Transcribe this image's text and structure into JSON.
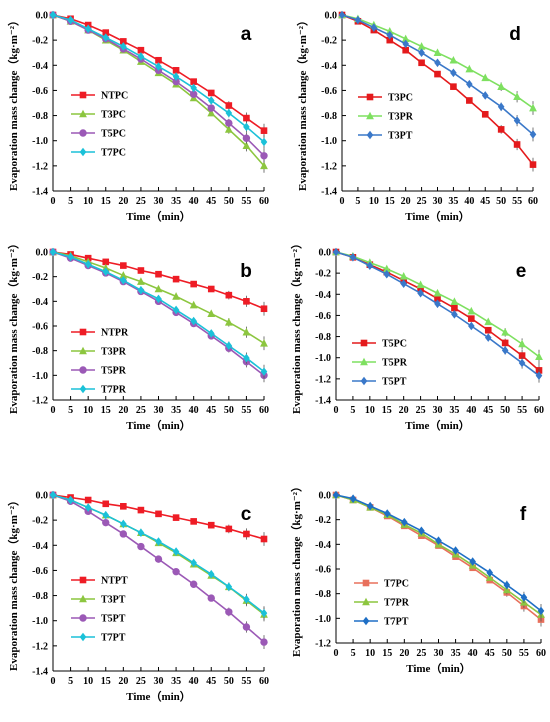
{
  "figure": {
    "x_label": "Time（min）",
    "y_label": "Evaporation mass change（kg·m⁻²）"
  },
  "chart_data": [
    {
      "panel_letter": "a",
      "type": "line",
      "x": [
        0,
        5,
        10,
        15,
        20,
        25,
        30,
        35,
        40,
        45,
        50,
        55,
        60
      ],
      "x_ticks": [
        0,
        5,
        10,
        15,
        20,
        25,
        30,
        35,
        40,
        45,
        50,
        55,
        60
      ],
      "xlim": [
        0,
        60
      ],
      "ylim": [
        -1.4,
        0.0
      ],
      "y_ticks": [
        "0.0",
        "-0.2",
        "-0.4",
        "-0.6",
        "-0.8",
        "-1.0",
        "-1.2",
        "-1.4"
      ],
      "legend_position": "center-left",
      "series": [
        {
          "name": "NTPC",
          "color": "#ee1c25",
          "marker": "square",
          "values": [
            0,
            -0.03,
            -0.08,
            -0.14,
            -0.21,
            -0.28,
            -0.36,
            -0.44,
            -0.53,
            -0.62,
            -0.72,
            -0.82,
            -0.92
          ]
        },
        {
          "name": "T3PC",
          "color": "#8cc63f",
          "marker": "triangle",
          "values": [
            0,
            -0.05,
            -0.12,
            -0.2,
            -0.28,
            -0.37,
            -0.46,
            -0.55,
            -0.66,
            -0.78,
            -0.91,
            -1.04,
            -1.2
          ]
        },
        {
          "name": "T5PC",
          "color": "#9b59b6",
          "marker": "circle",
          "values": [
            0,
            -0.05,
            -0.12,
            -0.19,
            -0.27,
            -0.35,
            -0.44,
            -0.53,
            -0.63,
            -0.74,
            -0.86,
            -0.98,
            -1.12
          ]
        },
        {
          "name": "T7PC",
          "color": "#1bc1d8",
          "marker": "diamond",
          "values": [
            0,
            -0.04,
            -0.11,
            -0.18,
            -0.25,
            -0.33,
            -0.41,
            -0.49,
            -0.58,
            -0.68,
            -0.78,
            -0.89,
            -1.01
          ]
        }
      ]
    },
    {
      "panel_letter": "b",
      "type": "line",
      "x": [
        0,
        5,
        10,
        15,
        20,
        25,
        30,
        35,
        40,
        45,
        50,
        55,
        60
      ],
      "x_ticks": [
        0,
        5,
        10,
        15,
        20,
        25,
        30,
        35,
        40,
        45,
        50,
        55,
        60
      ],
      "xlim": [
        0,
        60
      ],
      "ylim": [
        -1.2,
        0.0
      ],
      "y_ticks": [
        "0.0",
        "-0.2",
        "-0.4",
        "-0.6",
        "-0.8",
        "-1.0",
        "-1.2"
      ],
      "legend_position": "center-left",
      "series": [
        {
          "name": "NTPR",
          "color": "#ee1c25",
          "marker": "square",
          "values": [
            0,
            -0.02,
            -0.05,
            -0.08,
            -0.11,
            -0.15,
            -0.18,
            -0.22,
            -0.26,
            -0.3,
            -0.35,
            -0.4,
            -0.46
          ]
        },
        {
          "name": "T3PR",
          "color": "#8cc63f",
          "marker": "triangle",
          "values": [
            0,
            -0.03,
            -0.08,
            -0.13,
            -0.19,
            -0.24,
            -0.3,
            -0.36,
            -0.43,
            -0.5,
            -0.57,
            -0.65,
            -0.74
          ]
        },
        {
          "name": "T5PR",
          "color": "#9b59b6",
          "marker": "circle",
          "values": [
            0,
            -0.05,
            -0.11,
            -0.17,
            -0.24,
            -0.32,
            -0.4,
            -0.49,
            -0.58,
            -0.68,
            -0.78,
            -0.89,
            -1.0
          ]
        },
        {
          "name": "T7PR",
          "color": "#1bc1d8",
          "marker": "diamond",
          "values": [
            0,
            -0.04,
            -0.1,
            -0.16,
            -0.23,
            -0.31,
            -0.38,
            -0.47,
            -0.56,
            -0.66,
            -0.76,
            -0.86,
            -0.97
          ]
        }
      ]
    },
    {
      "panel_letter": "c",
      "type": "line",
      "x": [
        0,
        5,
        10,
        15,
        20,
        25,
        30,
        35,
        40,
        45,
        50,
        55,
        60
      ],
      "x_ticks": [
        0,
        5,
        10,
        15,
        20,
        25,
        30,
        35,
        40,
        45,
        50,
        55,
        60
      ],
      "xlim": [
        0,
        60
      ],
      "ylim": [
        -1.4,
        0.0
      ],
      "y_ticks": [
        "0.0",
        "-0.2",
        "-0.4",
        "-0.6",
        "-0.8",
        "-1.0",
        "-1.2",
        "-1.4"
      ],
      "legend_position": "center-left",
      "series": [
        {
          "name": "NTPT",
          "color": "#ee1c25",
          "marker": "square",
          "values": [
            0,
            -0.02,
            -0.04,
            -0.07,
            -0.09,
            -0.12,
            -0.15,
            -0.18,
            -0.21,
            -0.24,
            -0.27,
            -0.31,
            -0.35
          ]
        },
        {
          "name": "T3PT",
          "color": "#8cc63f",
          "marker": "triangle",
          "values": [
            0,
            -0.04,
            -0.1,
            -0.16,
            -0.23,
            -0.3,
            -0.38,
            -0.46,
            -0.55,
            -0.64,
            -0.73,
            -0.84,
            -0.95
          ]
        },
        {
          "name": "T5PT",
          "color": "#9b59b6",
          "marker": "circle",
          "values": [
            0,
            -0.05,
            -0.13,
            -0.22,
            -0.31,
            -0.41,
            -0.51,
            -0.61,
            -0.71,
            -0.82,
            -0.93,
            -1.05,
            -1.17
          ]
        },
        {
          "name": "T7PT",
          "color": "#1bc1d8",
          "marker": "diamond",
          "values": [
            0,
            -0.04,
            -0.1,
            -0.16,
            -0.23,
            -0.3,
            -0.37,
            -0.45,
            -0.54,
            -0.63,
            -0.73,
            -0.83,
            -0.94
          ]
        }
      ]
    },
    {
      "panel_letter": "d",
      "type": "line",
      "x": [
        0,
        5,
        10,
        15,
        20,
        25,
        30,
        35,
        40,
        45,
        50,
        55,
        60
      ],
      "x_ticks": [
        0,
        5,
        10,
        15,
        20,
        25,
        30,
        35,
        40,
        45,
        50,
        55,
        60
      ],
      "xlim": [
        0,
        60
      ],
      "ylim": [
        -1.4,
        0.0
      ],
      "y_ticks": [
        "0.0",
        "-0.2",
        "-0.4",
        "-0.6",
        "-0.8",
        "-1.0",
        "-1.2",
        "-1.4"
      ],
      "legend_position": "center-left",
      "series": [
        {
          "name": "T3PC",
          "color": "#e41a1c",
          "marker": "square",
          "values": [
            0,
            -0.05,
            -0.12,
            -0.2,
            -0.28,
            -0.38,
            -0.47,
            -0.57,
            -0.68,
            -0.79,
            -0.91,
            -1.03,
            -1.19
          ]
        },
        {
          "name": "T3PR",
          "color": "#7ee060",
          "marker": "triangle",
          "values": [
            0,
            -0.03,
            -0.08,
            -0.13,
            -0.19,
            -0.25,
            -0.3,
            -0.36,
            -0.43,
            -0.5,
            -0.57,
            -0.65,
            -0.74
          ]
        },
        {
          "name": "T3PT",
          "color": "#3a78c9",
          "marker": "diamond",
          "values": [
            0,
            -0.04,
            -0.1,
            -0.16,
            -0.23,
            -0.3,
            -0.38,
            -0.46,
            -0.55,
            -0.64,
            -0.73,
            -0.84,
            -0.95
          ]
        }
      ]
    },
    {
      "panel_letter": "e",
      "type": "line",
      "x": [
        0,
        5,
        10,
        15,
        20,
        25,
        30,
        35,
        40,
        45,
        50,
        55,
        60
      ],
      "x_ticks": [
        0,
        5,
        10,
        15,
        20,
        25,
        30,
        35,
        40,
        45,
        50,
        55,
        60
      ],
      "xlim": [
        0,
        60
      ],
      "ylim": [
        -1.4,
        0.0
      ],
      "y_ticks": [
        "0.0",
        "-0.2",
        "-0.4",
        "-0.6",
        "-0.8",
        "-1.0",
        "-1.2",
        "-1.4"
      ],
      "legend_position": "center-left",
      "series": [
        {
          "name": "T5PC",
          "color": "#e41a1c",
          "marker": "square",
          "values": [
            0,
            -0.05,
            -0.12,
            -0.19,
            -0.27,
            -0.35,
            -0.44,
            -0.53,
            -0.63,
            -0.74,
            -0.86,
            -0.98,
            -1.12
          ]
        },
        {
          "name": "T5PR",
          "color": "#7ee060",
          "marker": "triangle",
          "values": [
            0,
            -0.04,
            -0.1,
            -0.16,
            -0.23,
            -0.31,
            -0.39,
            -0.47,
            -0.56,
            -0.66,
            -0.76,
            -0.87,
            -0.99
          ]
        },
        {
          "name": "T5PT",
          "color": "#3a78c9",
          "marker": "diamond",
          "values": [
            0,
            -0.05,
            -0.13,
            -0.21,
            -0.3,
            -0.39,
            -0.49,
            -0.59,
            -0.7,
            -0.81,
            -0.93,
            -1.05,
            -1.17
          ]
        }
      ]
    },
    {
      "panel_letter": "f",
      "type": "line",
      "x": [
        0,
        5,
        10,
        15,
        20,
        25,
        30,
        35,
        40,
        45,
        50,
        55,
        60
      ],
      "x_ticks": [
        0,
        5,
        10,
        15,
        20,
        25,
        30,
        35,
        40,
        45,
        50,
        55,
        60
      ],
      "xlim": [
        0,
        60
      ],
      "ylim": [
        -1.2,
        0.0
      ],
      "y_ticks": [
        "0.0",
        "-0.2",
        "-0.4",
        "-0.6",
        "-0.8",
        "-1.0",
        "-1.2"
      ],
      "legend_position": "bottom-left",
      "series": [
        {
          "name": "T7PC",
          "color": "#e8705c",
          "marker": "square",
          "values": [
            0,
            -0.04,
            -0.1,
            -0.17,
            -0.25,
            -0.33,
            -0.41,
            -0.5,
            -0.59,
            -0.69,
            -0.79,
            -0.9,
            -1.01
          ]
        },
        {
          "name": "T7PR",
          "color": "#8cc63f",
          "marker": "triangle",
          "values": [
            0,
            -0.04,
            -0.1,
            -0.16,
            -0.24,
            -0.31,
            -0.4,
            -0.48,
            -0.57,
            -0.67,
            -0.77,
            -0.87,
            -0.97
          ]
        },
        {
          "name": "T7PT",
          "color": "#1f6fc5",
          "marker": "diamond",
          "values": [
            0,
            -0.03,
            -0.09,
            -0.15,
            -0.22,
            -0.29,
            -0.37,
            -0.45,
            -0.54,
            -0.63,
            -0.73,
            -0.83,
            -0.94
          ]
        }
      ]
    }
  ]
}
